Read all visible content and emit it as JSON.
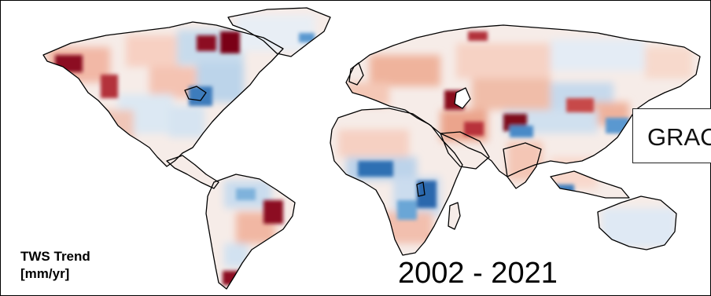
{
  "map": {
    "variable_label_line1": "TWS Trend",
    "variable_label_line2": "[mm/yr]",
    "period": "2002 - 2021",
    "dataset_badge": "GRACE",
    "colors": {
      "strong_loss": "#7a0019",
      "loss": "#d8604a",
      "mild_loss": "#f7c8b5",
      "neutral": "#ffffff",
      "mild_gain": "#c9ddef",
      "gain": "#5b9fd1",
      "strong_gain": "#1f5fa6",
      "coastline": "#000000",
      "ocean": "#ffffff"
    },
    "projection": "equirectangular"
  }
}
